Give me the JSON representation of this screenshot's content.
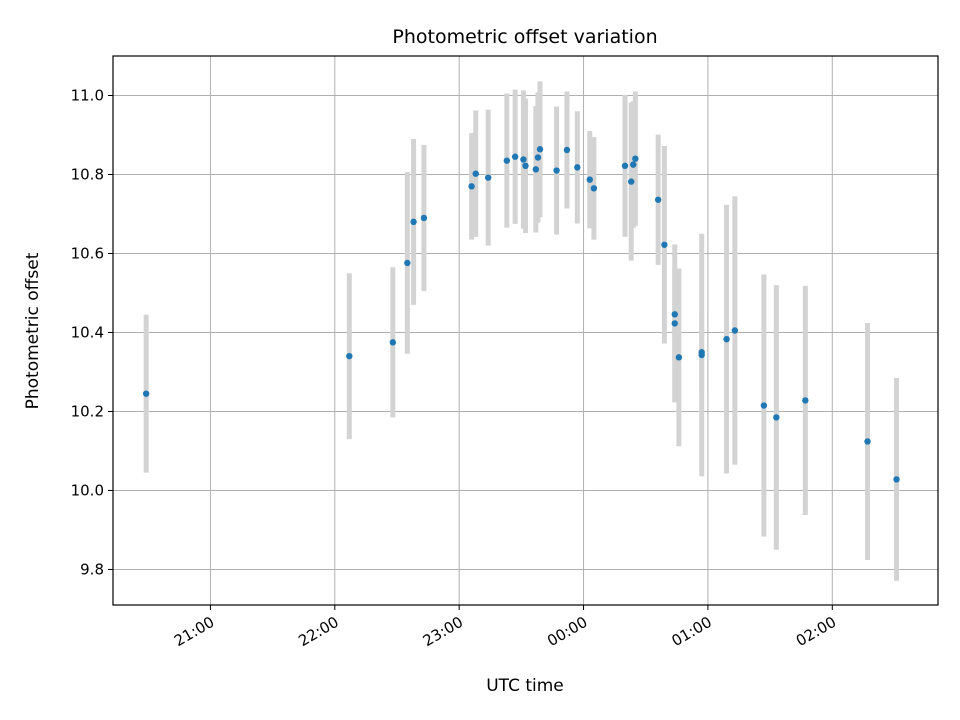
{
  "chart_data": {
    "type": "scatter",
    "title": "Photometric offset variation",
    "xlabel": "UTC time",
    "ylabel": "Photometric offset",
    "x_axis_type": "time",
    "xlim": [
      "20:13",
      "02:51"
    ],
    "ylim": [
      9.71,
      11.1
    ],
    "grid": true,
    "point_color": "#1f77b4",
    "errorbar_color": "#d3d3d3",
    "x_ticks": [
      "21:00",
      "22:00",
      "23:00",
      "00:00",
      "01:00",
      "02:00"
    ],
    "y_ticks": [
      9.8,
      10.0,
      10.2,
      10.4,
      10.6,
      10.8,
      11.0
    ],
    "y_tick_labels": [
      "9.8",
      "10.0",
      "10.2",
      "10.4",
      "10.6",
      "10.8",
      "11.0"
    ],
    "points": [
      {
        "t": "20:29",
        "y": 10.245,
        "err": 0.2
      },
      {
        "t": "22:07",
        "y": 10.34,
        "err": 0.21
      },
      {
        "t": "22:28",
        "y": 10.375,
        "err": 0.19
      },
      {
        "t": "22:35",
        "y": 10.576,
        "err": 0.23
      },
      {
        "t": "22:38",
        "y": 10.68,
        "err": 0.21
      },
      {
        "t": "22:43",
        "y": 10.69,
        "err": 0.185
      },
      {
        "t": "23:06",
        "y": 10.77,
        "err": 0.135
      },
      {
        "t": "23:08",
        "y": 10.802,
        "err": 0.16
      },
      {
        "t": "23:14",
        "y": 10.792,
        "err": 0.172
      },
      {
        "t": "23:23",
        "y": 10.835,
        "err": 0.17
      },
      {
        "t": "23:27",
        "y": 10.845,
        "err": 0.17
      },
      {
        "t": "23:31",
        "y": 10.838,
        "err": 0.175
      },
      {
        "t": "23:32",
        "y": 10.822,
        "err": 0.17
      },
      {
        "t": "23:37",
        "y": 10.813,
        "err": 0.16
      },
      {
        "t": "23:38",
        "y": 10.843,
        "err": 0.165
      },
      {
        "t": "23:39",
        "y": 10.864,
        "err": 0.172
      },
      {
        "t": "23:47",
        "y": 10.81,
        "err": 0.162
      },
      {
        "t": "23:52",
        "y": 10.862,
        "err": 0.148
      },
      {
        "t": "23:57",
        "y": 10.818,
        "err": 0.142
      },
      {
        "t": "00:03",
        "y": 10.787,
        "err": 0.123
      },
      {
        "t": "00:05",
        "y": 10.765,
        "err": 0.13
      },
      {
        "t": "00:20",
        "y": 10.822,
        "err": 0.18
      },
      {
        "t": "00:23",
        "y": 10.782,
        "err": 0.2
      },
      {
        "t": "00:24",
        "y": 10.825,
        "err": 0.16
      },
      {
        "t": "00:25",
        "y": 10.84,
        "err": 0.17
      },
      {
        "t": "00:36",
        "y": 10.736,
        "err": 0.165
      },
      {
        "t": "00:39",
        "y": 10.622,
        "err": 0.25
      },
      {
        "t": "00:44",
        "y": 10.423,
        "err": 0.2
      },
      {
        "t": "00:44",
        "y": 10.446,
        "err": 0.12
      },
      {
        "t": "00:46",
        "y": 10.337,
        "err": 0.225
      },
      {
        "t": "00:57",
        "y": 10.35,
        "err": 0.1
      },
      {
        "t": "00:57",
        "y": 10.343,
        "err": 0.307
      },
      {
        "t": "01:09",
        "y": 10.383,
        "err": 0.34
      },
      {
        "t": "01:13",
        "y": 10.405,
        "err": 0.34
      },
      {
        "t": "01:27",
        "y": 10.215,
        "err": 0.332
      },
      {
        "t": "01:33",
        "y": 10.185,
        "err": 0.335
      },
      {
        "t": "01:47",
        "y": 10.228,
        "err": 0.29
      },
      {
        "t": "02:17",
        "y": 10.124,
        "err": 0.3
      },
      {
        "t": "02:31",
        "y": 10.028,
        "err": 0.257
      }
    ]
  }
}
